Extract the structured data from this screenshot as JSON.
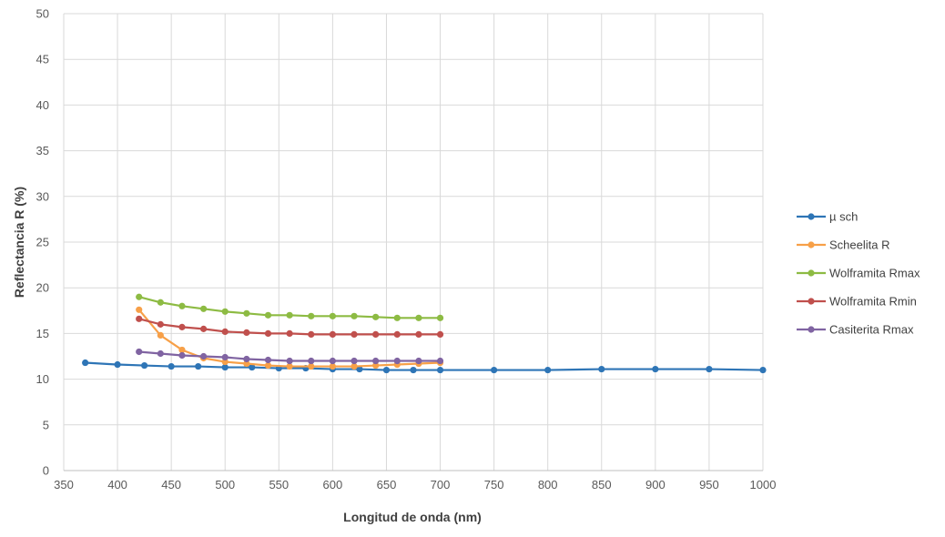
{
  "chart_data": {
    "type": "line",
    "title": "",
    "xlabel": "Longitud de onda (nm)",
    "ylabel": "Reflectancia R (%)",
    "xlim": [
      350,
      1000
    ],
    "ylim": [
      0,
      50
    ],
    "x_ticks": [
      350,
      400,
      450,
      500,
      550,
      600,
      650,
      700,
      750,
      800,
      850,
      900,
      950,
      1000
    ],
    "y_ticks": [
      0,
      5,
      10,
      15,
      20,
      25,
      30,
      35,
      40,
      45,
      50
    ],
    "grid": true,
    "legend_position": "right",
    "series": [
      {
        "name": "µ sch",
        "color": "#2E75B6",
        "x": [
          370,
          400,
          425,
          450,
          475,
          500,
          525,
          550,
          575,
          600,
          625,
          650,
          675,
          700,
          750,
          800,
          850,
          900,
          950,
          1000
        ],
        "y": [
          11.8,
          11.6,
          11.5,
          11.4,
          11.4,
          11.3,
          11.3,
          11.2,
          11.2,
          11.1,
          11.1,
          11.0,
          11.0,
          11.0,
          11.0,
          11.0,
          11.1,
          11.1,
          11.1,
          11.0
        ]
      },
      {
        "name": "Scheelita R",
        "color": "#F7A048",
        "x": [
          420,
          440,
          460,
          480,
          500,
          520,
          540,
          560,
          580,
          600,
          620,
          640,
          660,
          680,
          700
        ],
        "y": [
          17.6,
          14.8,
          13.2,
          12.3,
          11.9,
          11.7,
          11.5,
          11.4,
          11.4,
          11.4,
          11.4,
          11.5,
          11.6,
          11.7,
          11.8
        ]
      },
      {
        "name": "Wolframita Rmax",
        "color": "#8DBB43",
        "x": [
          420,
          440,
          460,
          480,
          500,
          520,
          540,
          560,
          580,
          600,
          620,
          640,
          660,
          680,
          700
        ],
        "y": [
          19.0,
          18.4,
          18.0,
          17.7,
          17.4,
          17.2,
          17.0,
          17.0,
          16.9,
          16.9,
          16.9,
          16.8,
          16.7,
          16.7,
          16.7
        ]
      },
      {
        "name": "Wolframita Rmin",
        "color": "#C0504D",
        "x": [
          420,
          440,
          460,
          480,
          500,
          520,
          540,
          560,
          580,
          600,
          620,
          640,
          660,
          680,
          700
        ],
        "y": [
          16.6,
          16.0,
          15.7,
          15.5,
          15.2,
          15.1,
          15.0,
          15.0,
          14.9,
          14.9,
          14.9,
          14.9,
          14.9,
          14.9,
          14.9
        ]
      },
      {
        "name": "Casiterita Rmax",
        "color": "#8064A2",
        "x": [
          420,
          440,
          460,
          480,
          500,
          520,
          540,
          560,
          580,
          600,
          620,
          640,
          660,
          680,
          700
        ],
        "y": [
          13.0,
          12.8,
          12.6,
          12.5,
          12.4,
          12.2,
          12.1,
          12.0,
          12.0,
          12.0,
          12.0,
          12.0,
          12.0,
          12.0,
          12.0
        ]
      }
    ]
  }
}
